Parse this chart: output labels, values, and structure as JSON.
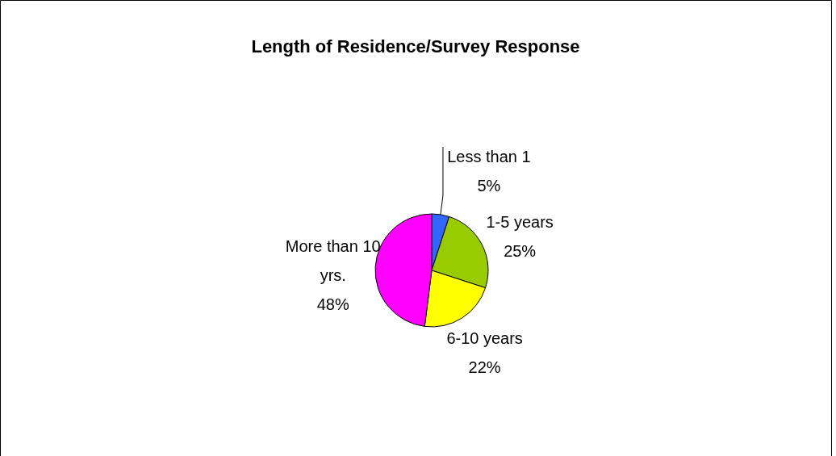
{
  "chart_data": {
    "type": "pie",
    "title": "Length of Residence/Survey Response",
    "categories": [
      "Less than 1",
      "1-5 years",
      "6-10 years",
      "More than 10 yrs."
    ],
    "values": [
      5,
      25,
      22,
      48
    ],
    "colors": [
      "#3366ff",
      "#99cc00",
      "#ffff00",
      "#ff00ff"
    ],
    "value_labels": [
      "5%",
      "25%",
      "22%",
      "48%"
    ]
  }
}
